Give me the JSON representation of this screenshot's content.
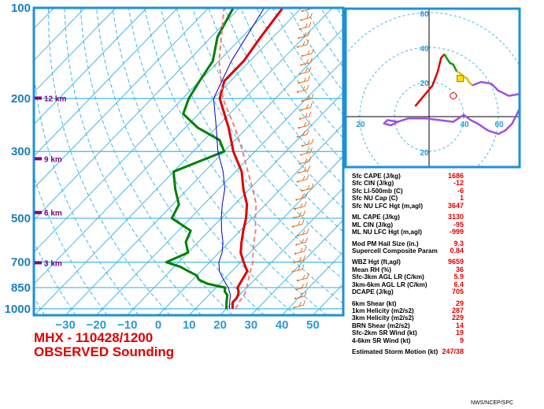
{
  "chart_data": {
    "type": "skew-t",
    "pressure_ticks": [
      "100",
      "200",
      "300",
      "500",
      "700",
      "850",
      "1000"
    ],
    "temp_ticks": [
      "−30",
      "−20",
      "−10",
      "0",
      "10",
      "20",
      "30",
      "40",
      "50"
    ],
    "height_labels": [
      "12 km",
      "9 km",
      "6 km",
      "3 km"
    ],
    "series": [
      {
        "series_role": "temperature",
        "color": "#e00000",
        "points": [
          [
            1000,
            22
          ],
          [
            975,
            21
          ],
          [
            950,
            20
          ],
          [
            925,
            20
          ],
          [
            900,
            19.5
          ],
          [
            875,
            18.5
          ],
          [
            850,
            17
          ],
          [
            800,
            16
          ],
          [
            750,
            15
          ],
          [
            700,
            11
          ],
          [
            650,
            7
          ],
          [
            600,
            4
          ],
          [
            550,
            1
          ],
          [
            500,
            -2
          ],
          [
            450,
            -6
          ],
          [
            400,
            -12
          ],
          [
            350,
            -18
          ],
          [
            300,
            -27
          ],
          [
            250,
            -36
          ],
          [
            200,
            -48
          ],
          [
            175,
            -52
          ],
          [
            150,
            -52
          ],
          [
            125,
            -54
          ],
          [
            100,
            -56
          ]
        ]
      },
      {
        "series_role": "dewpoint",
        "color": "#008000",
        "points": [
          [
            1000,
            20
          ],
          [
            975,
            19
          ],
          [
            950,
            18
          ],
          [
            925,
            17
          ],
          [
            900,
            16
          ],
          [
            875,
            14
          ],
          [
            850,
            13
          ],
          [
            825,
            6
          ],
          [
            800,
            2
          ],
          [
            775,
            0
          ],
          [
            750,
            -4
          ],
          [
            725,
            -8
          ],
          [
            700,
            -14
          ],
          [
            650,
            -10
          ],
          [
            600,
            -14
          ],
          [
            550,
            -16
          ],
          [
            500,
            -26
          ],
          [
            450,
            -28
          ],
          [
            400,
            -34
          ],
          [
            350,
            -40
          ],
          [
            300,
            -30
          ],
          [
            275,
            -35
          ],
          [
            250,
            -46
          ],
          [
            225,
            -55
          ],
          [
            200,
            -58
          ],
          [
            175,
            -60
          ],
          [
            150,
            -62
          ],
          [
            125,
            -68
          ],
          [
            100,
            -72
          ]
        ]
      },
      {
        "series_role": "parcel",
        "color": "#f08080",
        "points": [
          [
            1000,
            23
          ],
          [
            950,
            22
          ],
          [
            900,
            21.5
          ],
          [
            850,
            20
          ],
          [
            800,
            18
          ],
          [
            750,
            16
          ],
          [
            700,
            14
          ],
          [
            650,
            11
          ],
          [
            600,
            8
          ],
          [
            550,
            5
          ],
          [
            500,
            1
          ],
          [
            450,
            -3
          ],
          [
            400,
            -9
          ],
          [
            350,
            -16
          ],
          [
            300,
            -24
          ],
          [
            250,
            -34
          ],
          [
            200,
            -47
          ],
          [
            150,
            -60
          ],
          [
            100,
            -75
          ]
        ]
      },
      {
        "series_role": "wetbulb",
        "color": "#0000c0",
        "points": [
          [
            1000,
            21
          ],
          [
            950,
            19
          ],
          [
            900,
            17
          ],
          [
            850,
            14
          ],
          [
            800,
            10
          ],
          [
            750,
            6
          ],
          [
            700,
            3
          ],
          [
            650,
            1
          ],
          [
            600,
            -2
          ],
          [
            550,
            -6
          ],
          [
            500,
            -10
          ],
          [
            450,
            -14
          ],
          [
            400,
            -18
          ],
          [
            350,
            -24
          ],
          [
            300,
            -32
          ],
          [
            250,
            -40
          ],
          [
            200,
            -50
          ],
          [
            150,
            -56
          ],
          [
            100,
            -62
          ]
        ]
      }
    ],
    "hodograph": {
      "ring_labels": [
        "60",
        "40",
        "20",
        "20",
        "40",
        "60",
        "20"
      ],
      "segments": [
        {
          "color": "#e00000",
          "points": [
            [
              -8,
              6
            ],
            [
              -3,
              12
            ],
            [
              2,
              18
            ],
            [
              5,
              26
            ],
            [
              7,
              34
            ],
            [
              9,
              36
            ]
          ]
        },
        {
          "color": "#00a000",
          "points": [
            [
              9,
              36
            ],
            [
              10,
              34
            ],
            [
              12,
              31
            ],
            [
              14,
              30
            ],
            [
              15,
              28
            ],
            [
              16,
              26
            ]
          ]
        },
        {
          "color": "#e0c000",
          "points": [
            [
              16,
              26
            ],
            [
              18,
              25
            ],
            [
              20,
              23
            ],
            [
              22,
              22
            ],
            [
              23,
              20
            ],
            [
              25,
              18
            ]
          ]
        },
        {
          "color": "#a050e0",
          "points": [
            [
              25,
              18
            ],
            [
              30,
              20
            ],
            [
              36,
              19
            ],
            [
              40,
              15
            ],
            [
              46,
              12
            ],
            [
              52,
              13
            ],
            [
              56,
              10
            ],
            [
              55,
              6
            ],
            [
              52,
              4
            ],
            [
              48,
              -4
            ],
            [
              44,
              -8
            ],
            [
              40,
              -10
            ],
            [
              34,
              -8
            ],
            [
              28,
              -4
            ],
            [
              24,
              -2
            ],
            [
              20,
              1
            ],
            [
              14,
              -3
            ],
            [
              6,
              -2
            ],
            [
              -2,
              -1
            ],
            [
              -12,
              -1
            ],
            [
              -18,
              -3
            ],
            [
              -24,
              -2
            ],
            [
              -26,
              -4
            ],
            [
              -22,
              -5
            ],
            [
              -18,
              -3
            ]
          ]
        }
      ],
      "storm_motion_marker": [
        18,
        22
      ]
    },
    "params": [
      {
        "label": "Sfc CAPE (J/kg)",
        "value": "1686"
      },
      {
        "label": "Sfc CIN (J/kg)",
        "value": "-12"
      },
      {
        "label": "Sfc LI-500mb (C)",
        "value": "-6"
      },
      {
        "label": "Sfc NU Cap (C)",
        "value": "1"
      },
      {
        "label": "Sfc NU LFC Hgt (m,agl)",
        "value": "3647"
      },
      {
        "gap": true
      },
      {
        "label": "ML CAPE (J/kg)",
        "value": "3130"
      },
      {
        "label": "ML CIN (J/kg)",
        "value": "-95"
      },
      {
        "label": "ML NU LFC Hgt (m,agl)",
        "value": "-999"
      },
      {
        "gap": true
      },
      {
        "label": "Mod PM Hail Size (in.)",
        "value": "9.3"
      },
      {
        "label": "Supercell Composite Param",
        "value": "0.84"
      },
      {
        "gap": true
      },
      {
        "label": "WBZ Hgt (ft,agl)",
        "value": "9659"
      },
      {
        "label": "Mean RH (%)",
        "value": "36"
      },
      {
        "label": "Sfc-3km AGL LR (C/km)",
        "value": "5.9"
      },
      {
        "label": "3km-6km AGL LR (C/km)",
        "value": "6.4"
      },
      {
        "label": "DCAPE (J/kg)",
        "value": "705"
      },
      {
        "gap": true
      },
      {
        "label": "6km Shear (kt)",
        "value": "29"
      },
      {
        "label": "1km Helicity (m2/s2)",
        "value": "287"
      },
      {
        "label": "3km Helicity (m2/s2)",
        "value": "229"
      },
      {
        "label": "BRN Shear (m2/s2)",
        "value": "14"
      },
      {
        "label": "Sfc-2km SR Wind (kt)",
        "value": "19"
      },
      {
        "label": "4-6km SR Wind (kt)",
        "value": "9"
      },
      {
        "gap": true
      },
      {
        "label": "Estimated Storm Motion (kt)",
        "value": "247/38"
      }
    ]
  },
  "station": {
    "line1": "MHX - 110428/1200",
    "line2": "OBSERVED Sounding"
  },
  "credit": "NWS/NCEP/SPC"
}
